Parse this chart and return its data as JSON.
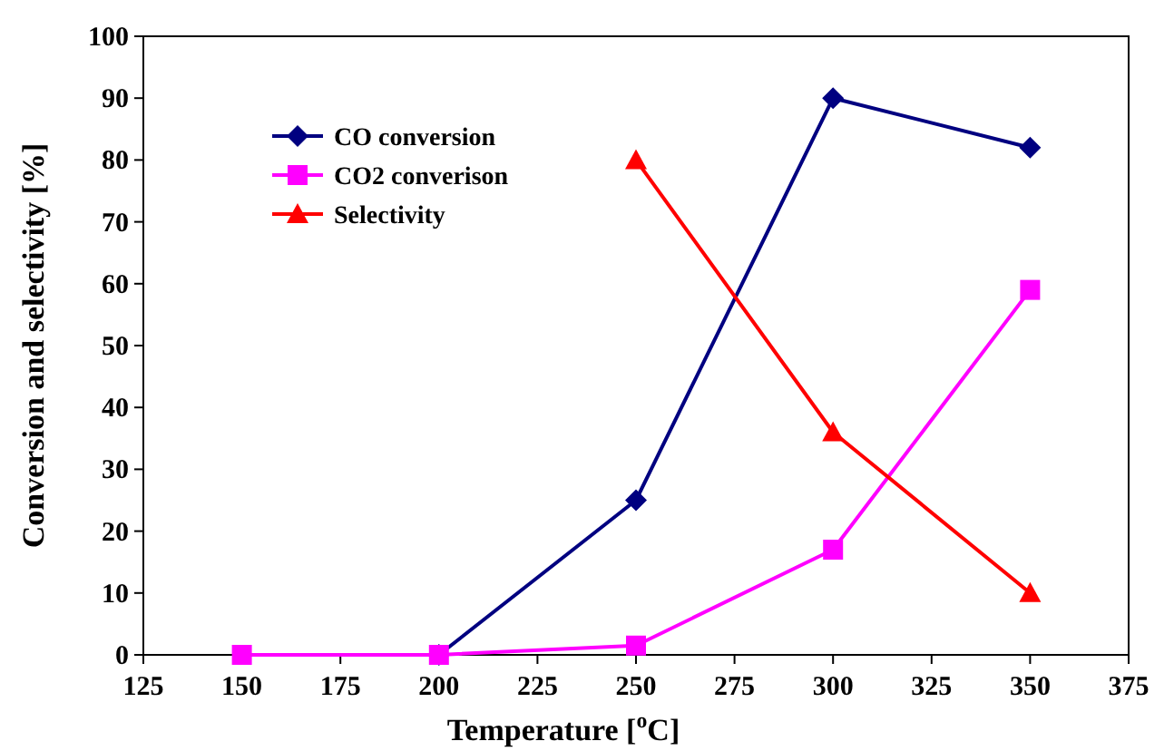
{
  "chart_data": {
    "type": "line",
    "xlabel": "Temperature [$^{o}$C]",
    "ylabel": "Conversion and selectivity [%]",
    "x": [
      150,
      200,
      250,
      300,
      350
    ],
    "series": [
      {
        "name": "CO conversion",
        "color": "#000080",
        "marker": "diamond",
        "values": [
          null,
          0,
          25,
          90,
          82
        ]
      },
      {
        "name": "CO2 converison",
        "color": "#ff00ff",
        "marker": "square",
        "values": [
          0,
          0,
          1.5,
          17,
          59
        ]
      },
      {
        "name": "Selectivity",
        "color": "#ff0000",
        "marker": "triangle",
        "values": [
          null,
          null,
          80,
          36,
          10
        ]
      }
    ],
    "xlim": [
      125,
      375
    ],
    "xticks": [
      125,
      150,
      175,
      200,
      225,
      250,
      275,
      300,
      325,
      350,
      375
    ],
    "ylim": [
      0,
      100
    ],
    "yticks": [
      0,
      10,
      20,
      30,
      40,
      50,
      60,
      70,
      80,
      90,
      100
    ],
    "grid": false,
    "legend": "top left",
    "line_style": "solid"
  }
}
